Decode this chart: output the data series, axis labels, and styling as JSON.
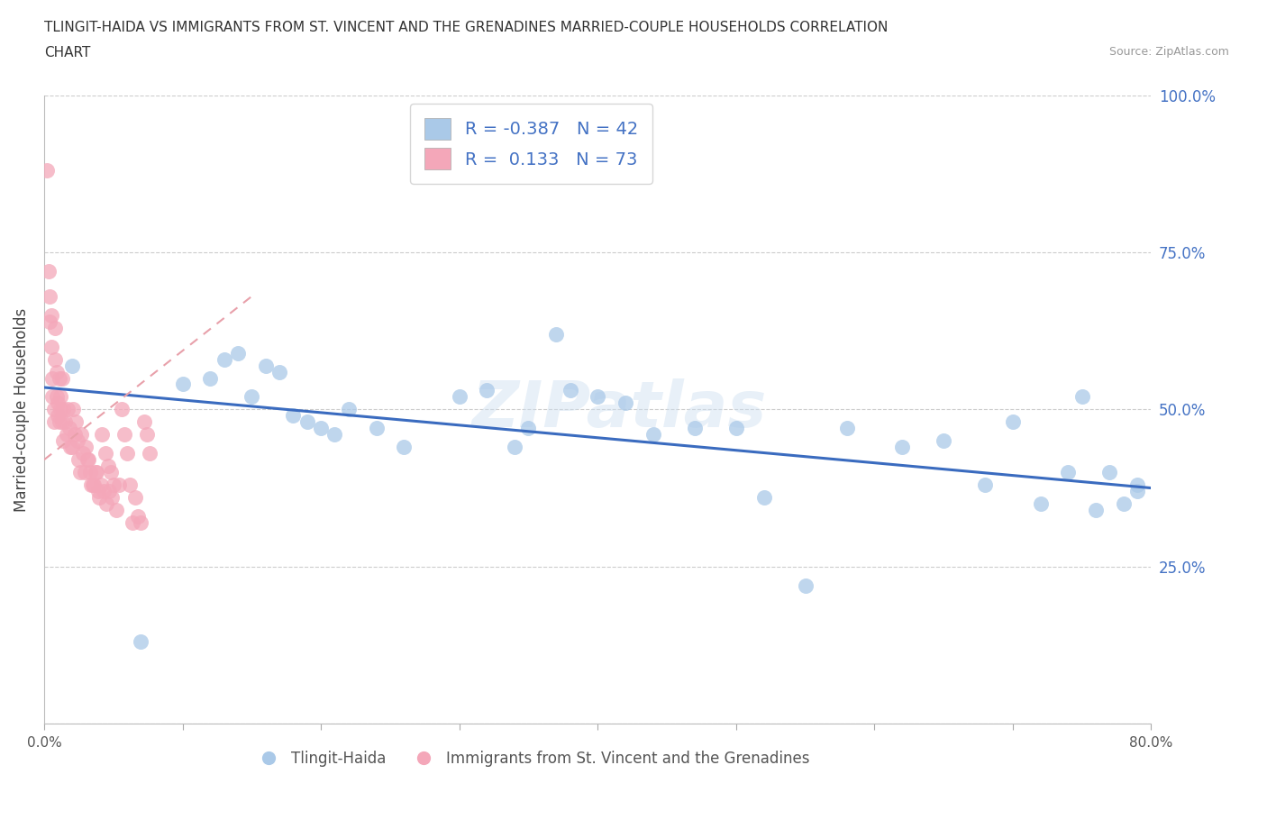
{
  "title_line1": "TLINGIT-HAIDA VS IMMIGRANTS FROM ST. VINCENT AND THE GRENADINES MARRIED-COUPLE HOUSEHOLDS CORRELATION",
  "title_line2": "CHART",
  "source_text": "Source: ZipAtlas.com",
  "ylabel": "Married-couple Households",
  "xmin": 0.0,
  "xmax": 0.8,
  "ymin": 0.0,
  "ymax": 1.0,
  "ytick_values": [
    0.0,
    0.25,
    0.5,
    0.75,
    1.0
  ],
  "ytick_labels": [
    "",
    "25.0%",
    "50.0%",
    "75.0%",
    "100.0%"
  ],
  "xtick_values": [
    0.0,
    0.1,
    0.2,
    0.3,
    0.4,
    0.5,
    0.6,
    0.7,
    0.8
  ],
  "xtick_labels": [
    "0.0%",
    "",
    "",
    "",
    "",
    "",
    "",
    "",
    "80.0%"
  ],
  "blue_R": -0.387,
  "blue_N": 42,
  "pink_R": 0.133,
  "pink_N": 73,
  "blue_color": "#aac9e8",
  "pink_color": "#f4a7b9",
  "blue_line_color": "#3a6bbf",
  "pink_line_color": "#e8a0aa",
  "watermark": "ZIPatlas",
  "legend_label_blue": "Tlingit-Haida",
  "legend_label_pink": "Immigrants from St. Vincent and the Grenadines",
  "blue_scatter_x": [
    0.02,
    0.07,
    0.1,
    0.12,
    0.13,
    0.14,
    0.15,
    0.16,
    0.17,
    0.18,
    0.19,
    0.2,
    0.21,
    0.22,
    0.24,
    0.26,
    0.3,
    0.32,
    0.34,
    0.35,
    0.37,
    0.38,
    0.4,
    0.42,
    0.44,
    0.47,
    0.5,
    0.52,
    0.55,
    0.58,
    0.62,
    0.65,
    0.68,
    0.7,
    0.72,
    0.74,
    0.75,
    0.76,
    0.77,
    0.78,
    0.79,
    0.79
  ],
  "blue_scatter_y": [
    0.57,
    0.13,
    0.54,
    0.55,
    0.58,
    0.59,
    0.52,
    0.57,
    0.56,
    0.49,
    0.48,
    0.47,
    0.46,
    0.5,
    0.47,
    0.44,
    0.52,
    0.53,
    0.44,
    0.47,
    0.62,
    0.53,
    0.52,
    0.51,
    0.46,
    0.47,
    0.47,
    0.36,
    0.22,
    0.47,
    0.44,
    0.45,
    0.38,
    0.48,
    0.35,
    0.4,
    0.52,
    0.34,
    0.4,
    0.35,
    0.38,
    0.37
  ],
  "pink_scatter_x": [
    0.002,
    0.003,
    0.004,
    0.004,
    0.005,
    0.005,
    0.006,
    0.006,
    0.007,
    0.007,
    0.008,
    0.008,
    0.009,
    0.009,
    0.01,
    0.01,
    0.011,
    0.011,
    0.012,
    0.012,
    0.013,
    0.013,
    0.014,
    0.014,
    0.015,
    0.016,
    0.017,
    0.018,
    0.019,
    0.02,
    0.021,
    0.022,
    0.023,
    0.024,
    0.025,
    0.026,
    0.027,
    0.028,
    0.029,
    0.03,
    0.031,
    0.032,
    0.033,
    0.034,
    0.035,
    0.036,
    0.037,
    0.038,
    0.039,
    0.04,
    0.041,
    0.042,
    0.043,
    0.044,
    0.045,
    0.046,
    0.047,
    0.048,
    0.049,
    0.05,
    0.052,
    0.054,
    0.056,
    0.058,
    0.06,
    0.062,
    0.064,
    0.066,
    0.068,
    0.07,
    0.072,
    0.074,
    0.076
  ],
  "pink_scatter_y": [
    0.88,
    0.72,
    0.68,
    0.64,
    0.65,
    0.6,
    0.55,
    0.52,
    0.5,
    0.48,
    0.63,
    0.58,
    0.56,
    0.52,
    0.51,
    0.49,
    0.48,
    0.55,
    0.52,
    0.5,
    0.48,
    0.55,
    0.45,
    0.5,
    0.48,
    0.46,
    0.5,
    0.47,
    0.44,
    0.44,
    0.5,
    0.46,
    0.48,
    0.45,
    0.42,
    0.4,
    0.46,
    0.43,
    0.4,
    0.44,
    0.42,
    0.42,
    0.4,
    0.38,
    0.38,
    0.38,
    0.4,
    0.4,
    0.37,
    0.36,
    0.38,
    0.46,
    0.37,
    0.43,
    0.35,
    0.41,
    0.37,
    0.4,
    0.36,
    0.38,
    0.34,
    0.38,
    0.5,
    0.46,
    0.43,
    0.38,
    0.32,
    0.36,
    0.33,
    0.32,
    0.48,
    0.46,
    0.43
  ],
  "blue_line_x0": 0.0,
  "blue_line_y0": 0.535,
  "blue_line_x1": 0.8,
  "blue_line_y1": 0.375,
  "pink_line_x0": 0.0,
  "pink_line_y0": 0.42,
  "pink_line_x1": 0.15,
  "pink_line_y1": 0.68
}
